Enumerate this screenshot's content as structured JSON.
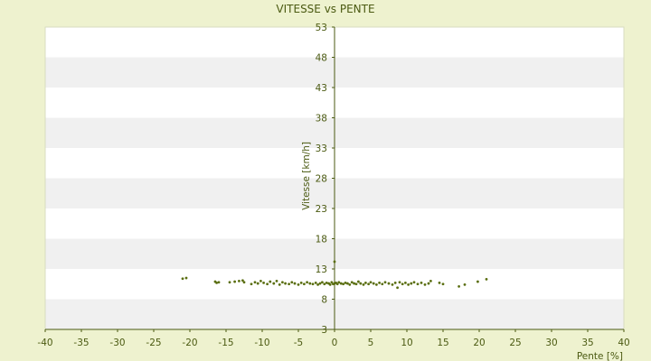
{
  "chart_data": {
    "type": "scatter",
    "title": "VITESSE vs PENTE",
    "xlabel": "Pente [%]",
    "ylabel": "Vitesse [km/h]",
    "xlim": [
      -40,
      40
    ],
    "ylim": [
      3,
      53
    ],
    "xticks": [
      -40,
      -35,
      -30,
      -25,
      -20,
      -15,
      -10,
      -5,
      0,
      5,
      10,
      15,
      20,
      25,
      30,
      35,
      40
    ],
    "yticks": [
      3,
      8,
      13,
      18,
      23,
      28,
      33,
      38,
      43,
      48,
      53
    ],
    "grid": "horizontal bands",
    "legend": "none",
    "colors": {
      "background": "#eef2cf",
      "plot": "#ffffff",
      "band": "#f0f0f0",
      "axis": "#4b5a12",
      "point": "#5a6e10"
    },
    "series": [
      {
        "points": [
          [
            -21.0,
            11.4
          ],
          [
            -20.5,
            11.5
          ],
          [
            -16.5,
            10.9
          ],
          [
            -16.3,
            10.7
          ],
          [
            -16.0,
            10.8
          ],
          [
            -14.5,
            10.8
          ],
          [
            -13.8,
            10.9
          ],
          [
            -13.2,
            11.0
          ],
          [
            -12.7,
            11.1
          ],
          [
            -12.5,
            10.8
          ],
          [
            -11.5,
            10.5
          ],
          [
            -11.0,
            10.8
          ],
          [
            -10.6,
            10.6
          ],
          [
            -10.2,
            11.0
          ],
          [
            -9.8,
            10.7
          ],
          [
            -9.3,
            10.5
          ],
          [
            -8.9,
            10.9
          ],
          [
            -8.4,
            10.6
          ],
          [
            -8.0,
            11.0
          ],
          [
            -7.6,
            10.4
          ],
          [
            -7.2,
            10.8
          ],
          [
            -6.8,
            10.6
          ],
          [
            -6.3,
            10.5
          ],
          [
            -5.9,
            10.8
          ],
          [
            -5.5,
            10.6
          ],
          [
            -5.0,
            10.4
          ],
          [
            -4.6,
            10.7
          ],
          [
            -4.2,
            10.5
          ],
          [
            -3.8,
            10.8
          ],
          [
            -3.4,
            10.6
          ],
          [
            -3.0,
            10.5
          ],
          [
            -2.6,
            10.7
          ],
          [
            -2.3,
            10.4
          ],
          [
            -2.0,
            10.6
          ],
          [
            -1.7,
            10.8
          ],
          [
            -1.4,
            10.5
          ],
          [
            -1.1,
            10.7
          ],
          [
            -0.8,
            10.6
          ],
          [
            -0.6,
            10.4
          ],
          [
            -0.4,
            10.8
          ],
          [
            -0.2,
            10.5
          ],
          [
            0.0,
            10.6
          ],
          [
            0.0,
            14.2
          ],
          [
            0.2,
            10.7
          ],
          [
            0.4,
            10.5
          ],
          [
            0.6,
            10.8
          ],
          [
            0.9,
            10.6
          ],
          [
            1.2,
            10.5
          ],
          [
            1.5,
            10.7
          ],
          [
            1.8,
            10.6
          ],
          [
            2.1,
            10.4
          ],
          [
            2.4,
            10.8
          ],
          [
            2.7,
            10.6
          ],
          [
            3.0,
            10.5
          ],
          [
            3.3,
            10.9
          ],
          [
            3.6,
            10.6
          ],
          [
            4.0,
            10.4
          ],
          [
            4.3,
            10.7
          ],
          [
            4.7,
            10.5
          ],
          [
            5.0,
            10.8
          ],
          [
            5.4,
            10.6
          ],
          [
            5.8,
            10.4
          ],
          [
            6.2,
            10.7
          ],
          [
            6.6,
            10.5
          ],
          [
            7.0,
            10.8
          ],
          [
            7.5,
            10.6
          ],
          [
            8.0,
            10.4
          ],
          [
            8.4,
            10.7
          ],
          [
            8.7,
            9.9
          ],
          [
            9.0,
            10.8
          ],
          [
            9.4,
            10.5
          ],
          [
            9.8,
            10.7
          ],
          [
            10.2,
            10.4
          ],
          [
            10.6,
            10.6
          ],
          [
            11.0,
            10.8
          ],
          [
            11.5,
            10.5
          ],
          [
            12.0,
            10.7
          ],
          [
            12.5,
            10.4
          ],
          [
            13.0,
            10.6
          ],
          [
            13.3,
            11.0
          ],
          [
            14.5,
            10.7
          ],
          [
            15.0,
            10.5
          ],
          [
            17.2,
            10.1
          ],
          [
            18.0,
            10.4
          ],
          [
            19.8,
            10.9
          ],
          [
            21.0,
            11.3
          ]
        ]
      }
    ]
  }
}
